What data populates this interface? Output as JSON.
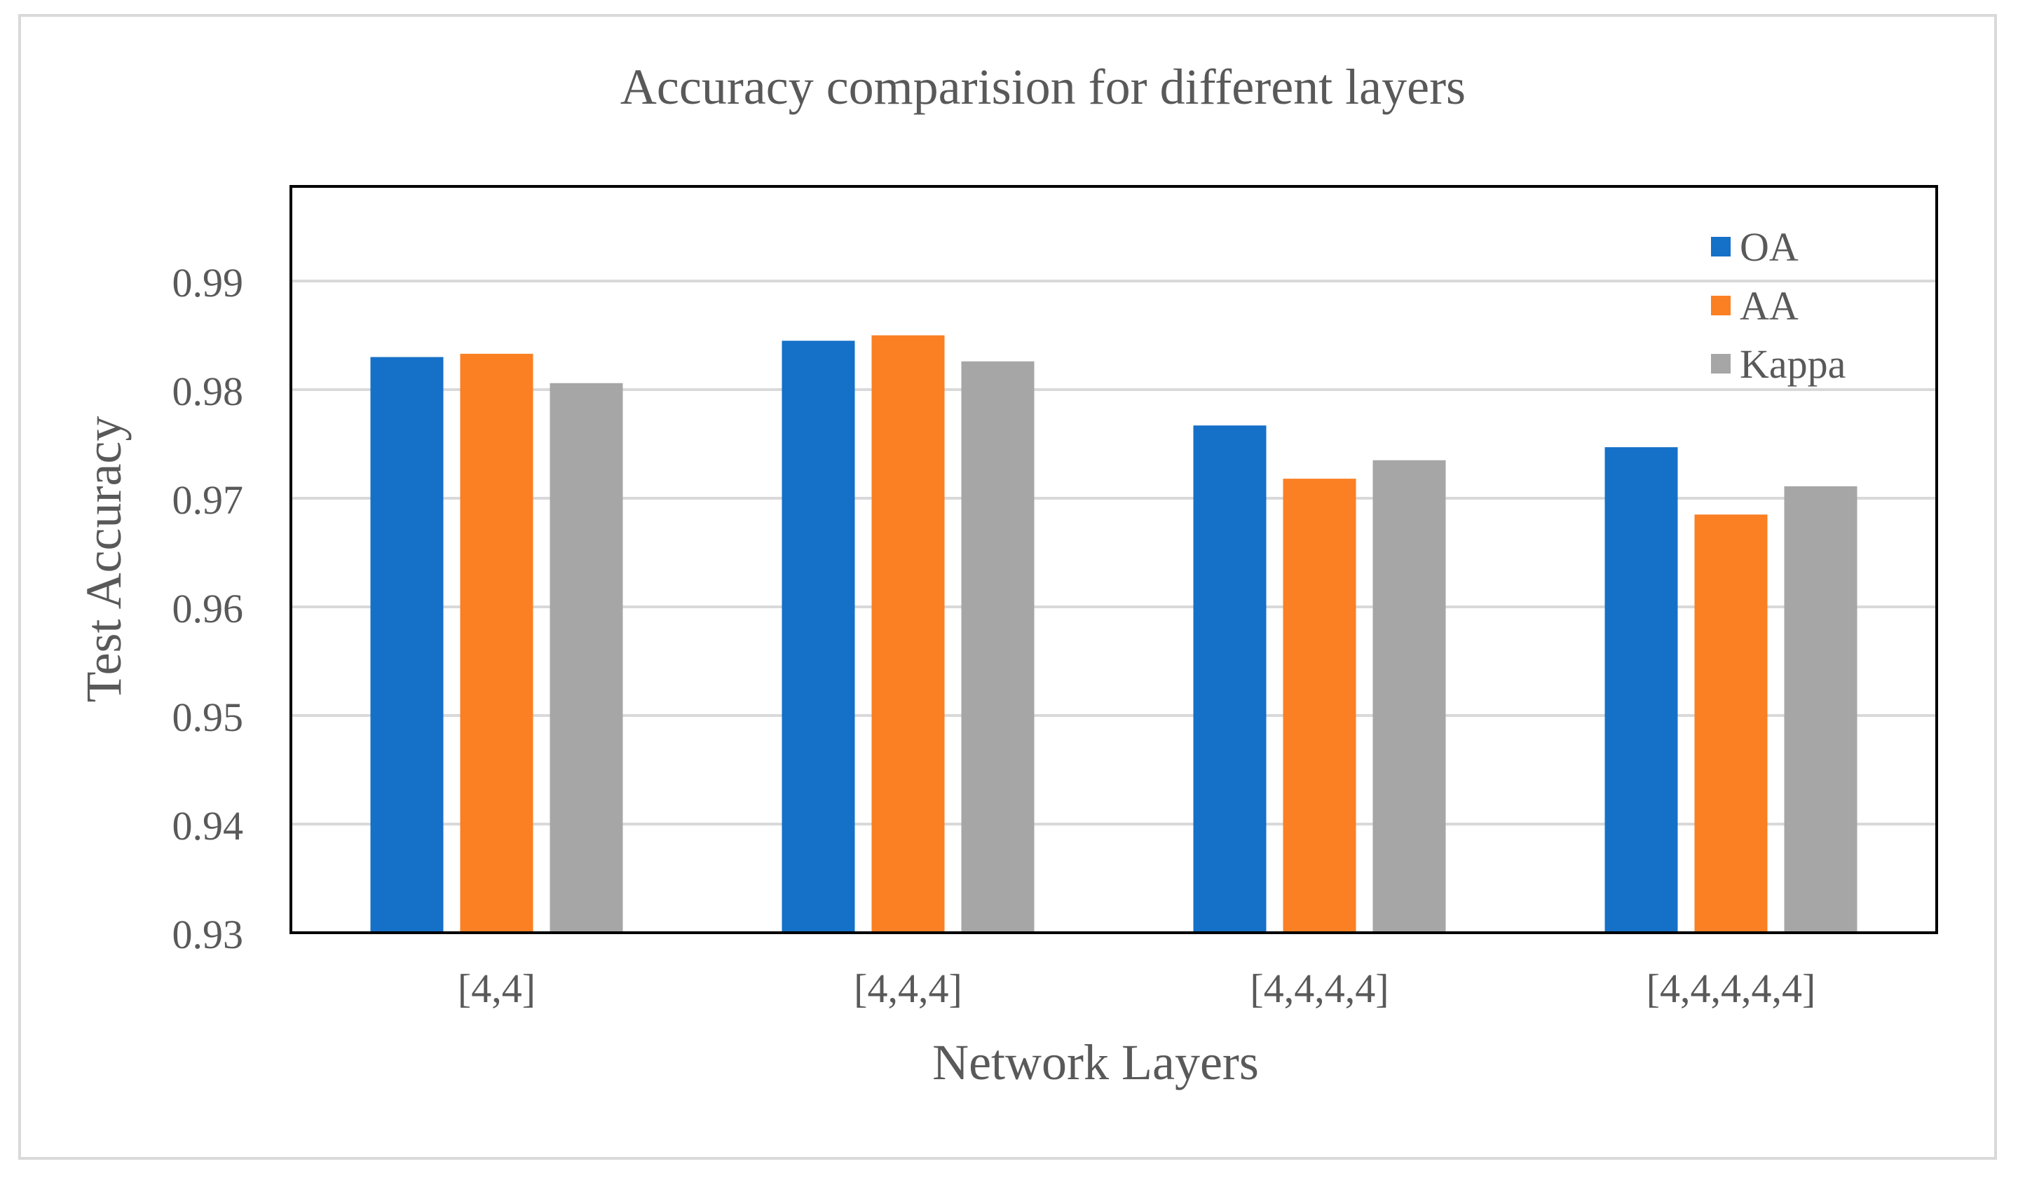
{
  "chart_data": {
    "type": "bar",
    "title": "Accuracy comparision for different layers",
    "xlabel": "Network Layers",
    "ylabel": "Test Accuracy",
    "categories": [
      "[4,4]",
      "[4,4,4]",
      "[4,4,4,4]",
      "[4,4,4,4,4]"
    ],
    "series": [
      {
        "name": "OA",
        "color": "#1570c8",
        "values": [
          0.983,
          0.9845,
          0.9767,
          0.9747
        ]
      },
      {
        "name": "AA",
        "color": "#fb7f23",
        "values": [
          0.9833,
          0.985,
          0.9718,
          0.9685
        ]
      },
      {
        "name": "Kappa",
        "color": "#a6a6a6",
        "values": [
          0.9806,
          0.9826,
          0.9735,
          0.9711
        ]
      }
    ],
    "ylim": [
      0.93,
      0.999
    ],
    "yticks": [
      "0.93",
      "0.94",
      "0.95",
      "0.96",
      "0.97",
      "0.98",
      "0.99"
    ],
    "ytick_values": [
      0.93,
      0.94,
      0.95,
      0.96,
      0.97,
      0.98,
      0.99
    ],
    "grid": true,
    "legend_position": "top-right"
  }
}
